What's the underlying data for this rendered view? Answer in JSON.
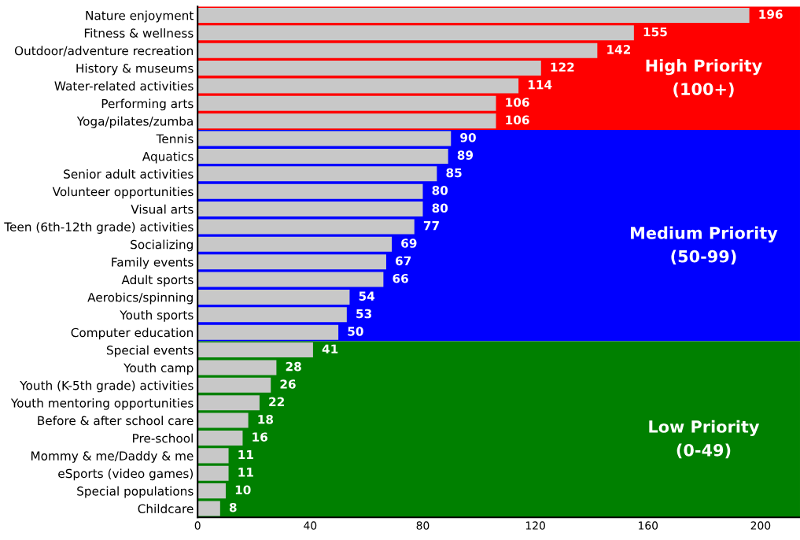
{
  "chart_data": {
    "type": "bar",
    "orientation": "horizontal",
    "categories": [
      "Nature enjoyment",
      "Fitness & wellness",
      "Outdoor/adventure recreation",
      "History & museums",
      "Water-related activities",
      "Performing arts",
      "Yoga/pilates/zumba",
      "Tennis",
      "Aquatics",
      "Senior adult activities",
      "Volunteer opportunities",
      "Visual arts",
      "Teen (6th-12th grade) activities",
      "Socializing",
      "Family events",
      "Adult sports",
      "Aerobics/spinning",
      "Youth sports",
      "Computer education",
      "Special events",
      "Youth camp",
      "Youth (K-5th grade) activities",
      "Youth mentoring opportunities",
      "Before & after school care",
      "Pre-school",
      "Mommy & me/Daddy & me",
      "eSports (video games)",
      "Special populations",
      "Childcare"
    ],
    "values": [
      196,
      155,
      142,
      122,
      114,
      106,
      106,
      90,
      89,
      85,
      80,
      80,
      77,
      69,
      67,
      66,
      54,
      53,
      50,
      41,
      28,
      26,
      22,
      18,
      16,
      11,
      11,
      10,
      8
    ],
    "color": "#c8c8c8",
    "data_labels": true,
    "xlim": [
      0,
      214
    ],
    "xticks": [
      0,
      40,
      80,
      120,
      160,
      200
    ],
    "grid": false,
    "legend": false,
    "bands": [
      {
        "axis": "y",
        "from": "Nature enjoyment",
        "to": "Yoga/pilates/zumba",
        "label": "High Priority\n(100+)",
        "color": "#ff0000"
      },
      {
        "axis": "y",
        "from": "Tennis",
        "to": "Computer education",
        "label": "Medium Priority\n(50-99)",
        "color": "#0000ff"
      },
      {
        "axis": "y",
        "from": "Special events",
        "to": "Childcare",
        "label": "Low Priority\n(0-49)",
        "color": "#008000"
      }
    ]
  }
}
